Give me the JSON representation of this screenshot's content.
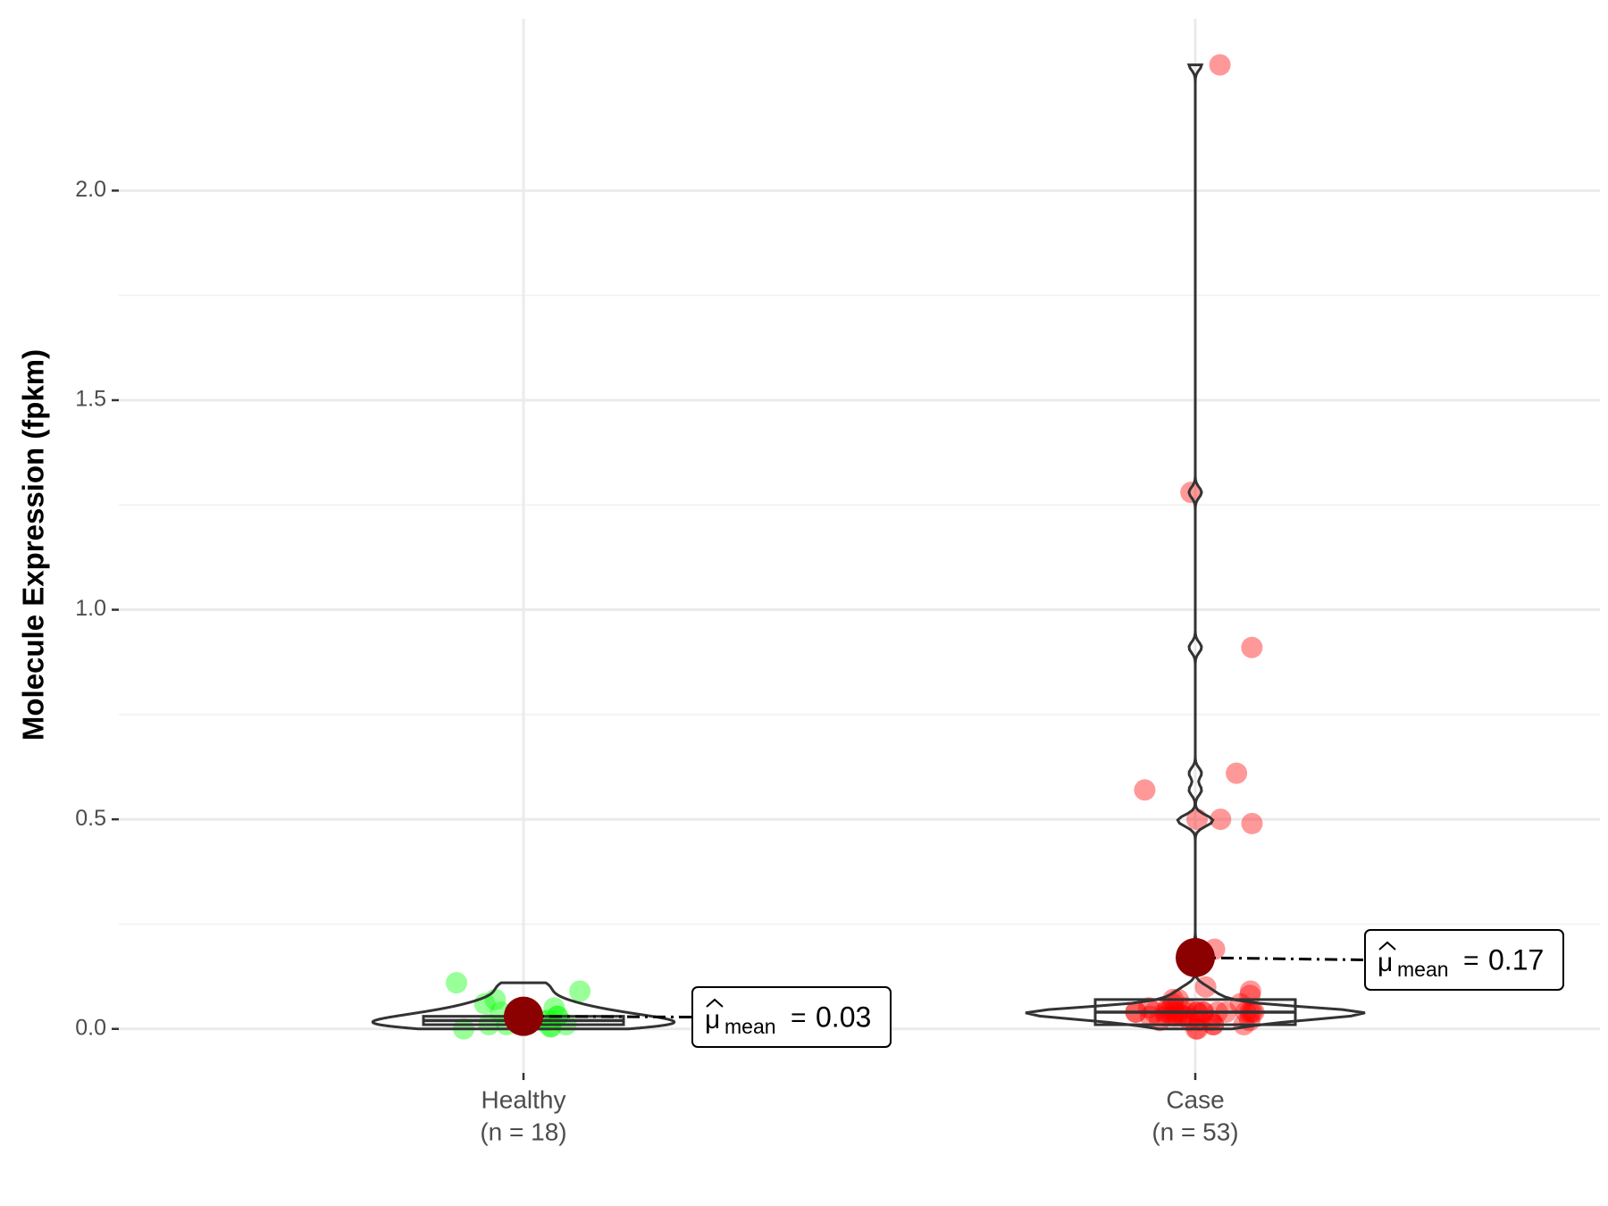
{
  "chart_data": {
    "type": "violin",
    "y_label": "Molecule Expression (fpkm)",
    "categories": [
      "Healthy",
      "Case"
    ],
    "n_labels": [
      "(n = 18)",
      "(n = 53)"
    ],
    "ylim": [
      -0.105,
      2.41
    ],
    "yticks": [
      {
        "value": 0,
        "label": "0.0"
      },
      {
        "value": 0.5,
        "label": "0.5"
      },
      {
        "value": 1,
        "label": "1.0"
      },
      {
        "value": 1.5,
        "label": "1.5"
      },
      {
        "value": 2,
        "label": "2.0"
      }
    ],
    "grid": true,
    "series": [
      {
        "name": "Healthy",
        "color": "#00ff00",
        "values": [
          0.11,
          0.09,
          0.07,
          0.06,
          0.05,
          0.04,
          0.04,
          0.03,
          0.03,
          0.02,
          0.02,
          0.02,
          0.01,
          0.01,
          0.01,
          0.005,
          0.005,
          0.0
        ]
      },
      {
        "name": "Case",
        "color": "#ff0000",
        "values": [
          2.3,
          1.28,
          0.91,
          0.61,
          0.57,
          0.5,
          0.49,
          0.5,
          0.19,
          0.1,
          0.09,
          0.08,
          0.07,
          0.07,
          0.06,
          0.06,
          0.05,
          0.05,
          0.05,
          0.04,
          0.04,
          0.04,
          0.04,
          0.04,
          0.04,
          0.04,
          0.04,
          0.04,
          0.04,
          0.04,
          0.04,
          0.04,
          0.04,
          0.04,
          0.04,
          0.04,
          0.04,
          0.03,
          0.03,
          0.03,
          0.03,
          0.03,
          0.03,
          0.02,
          0.02,
          0.02,
          0.02,
          0.02,
          0.01,
          0.01,
          0.01,
          0.0,
          0.0
        ]
      }
    ],
    "boxes": [
      {
        "q1": 0.01,
        "median": 0.02,
        "q3": 0.03
      },
      {
        "q1": 0.01,
        "median": 0.04,
        "q3": 0.07
      }
    ],
    "means": [
      0.03,
      0.17
    ],
    "mean_color": "#8b0000",
    "mean_symbol": "μ",
    "mean_subscript": "mean",
    "mean_equals": "="
  }
}
